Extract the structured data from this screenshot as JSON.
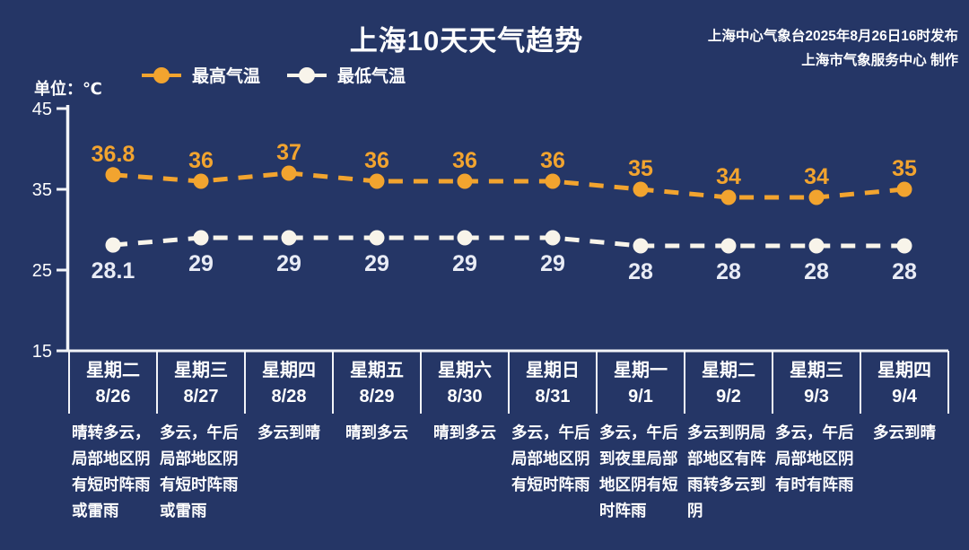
{
  "header": {
    "title": "上海10天天气趋势",
    "publisher_line1": "上海中心气象台2025年8月26日16时发布",
    "publisher_line2": "上海市气象服务中心 制作"
  },
  "legend": {
    "high_label": "最高气温",
    "low_label": "最低气温"
  },
  "unit_label": "单位：℃",
  "colors": {
    "background": "#253666",
    "high": "#F2A42F",
    "low": "#F8F4EA",
    "low_label": "#E9ECF5",
    "axis": "#F2F4F8",
    "text": "#FFFFFF"
  },
  "chart_data": {
    "type": "line",
    "title": "上海10天天气趋势",
    "line_style": "dashed",
    "legend_position": "top-left",
    "grid": false,
    "ylabel": "单位：℃",
    "ylim": [
      15,
      45
    ],
    "yticks": [
      45,
      35,
      25,
      15
    ],
    "categories": [
      "8/26",
      "8/27",
      "8/28",
      "8/29",
      "8/30",
      "8/31",
      "9/1",
      "9/2",
      "9/3",
      "9/4"
    ],
    "weekdays": [
      "星期二",
      "星期三",
      "星期四",
      "星期五",
      "星期六",
      "星期日",
      "星期一",
      "星期二",
      "星期三",
      "星期四"
    ],
    "series": [
      {
        "name": "最高气温",
        "values": [
          36.8,
          36,
          37,
          36,
          36,
          36,
          35,
          34,
          34,
          35
        ],
        "color": "#F2A42F",
        "label_color": "#F2A42F"
      },
      {
        "name": "最低气温",
        "values": [
          28.1,
          29,
          29,
          29,
          29,
          29,
          28,
          28,
          28,
          28
        ],
        "color": "#F8F4EA",
        "label_color": "#E9ECF5"
      }
    ]
  },
  "days": [
    {
      "weekday": "星期二",
      "date": "8/26",
      "weather": "晴转多云，局部地区阴有短时阵雨或雷雨"
    },
    {
      "weekday": "星期三",
      "date": "8/27",
      "weather": "多云，午后局部地区阴有短时阵雨或雷雨"
    },
    {
      "weekday": "星期四",
      "date": "8/28",
      "weather": "多云到晴"
    },
    {
      "weekday": "星期五",
      "date": "8/29",
      "weather": "晴到多云"
    },
    {
      "weekday": "星期六",
      "date": "8/30",
      "weather": "晴到多云"
    },
    {
      "weekday": "星期日",
      "date": "8/31",
      "weather": "多云，午后局部地区阴有短时阵雨"
    },
    {
      "weekday": "星期一",
      "date": "9/1",
      "weather": "多云，午后到夜里局部地区阴有短时阵雨"
    },
    {
      "weekday": "星期二",
      "date": "9/2",
      "weather": "多云到阴局部地区有阵雨转多云到阴"
    },
    {
      "weekday": "星期三",
      "date": "9/3",
      "weather": "多云，午后局部地区阴有时有阵雨"
    },
    {
      "weekday": "星期四",
      "date": "9/4",
      "weather": "多云到晴"
    }
  ]
}
